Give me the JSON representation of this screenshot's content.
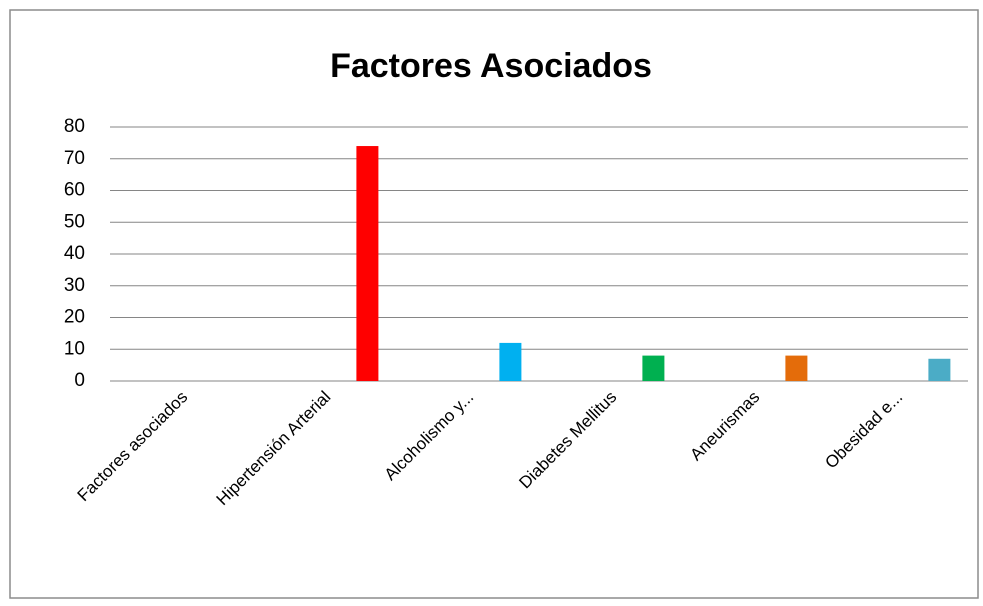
{
  "chart_data": {
    "type": "bar",
    "title": "Factores Asociados",
    "categories": [
      "Factores asociados",
      "Hipertensión Arterial",
      "Alcoholismo y...",
      "Diabetes Mellitus",
      "Aneurismas",
      "Obesidad e..."
    ],
    "values": [
      null,
      74,
      12,
      8,
      8,
      7
    ],
    "colors": [
      null,
      "#ff0000",
      "#00b0f0",
      "#00b050",
      "#e46c0a",
      "#4bacc6"
    ],
    "ylim": [
      0,
      80
    ],
    "yticks": [
      0,
      10,
      20,
      30,
      40,
      50,
      60,
      70,
      80
    ],
    "grid": true
  }
}
